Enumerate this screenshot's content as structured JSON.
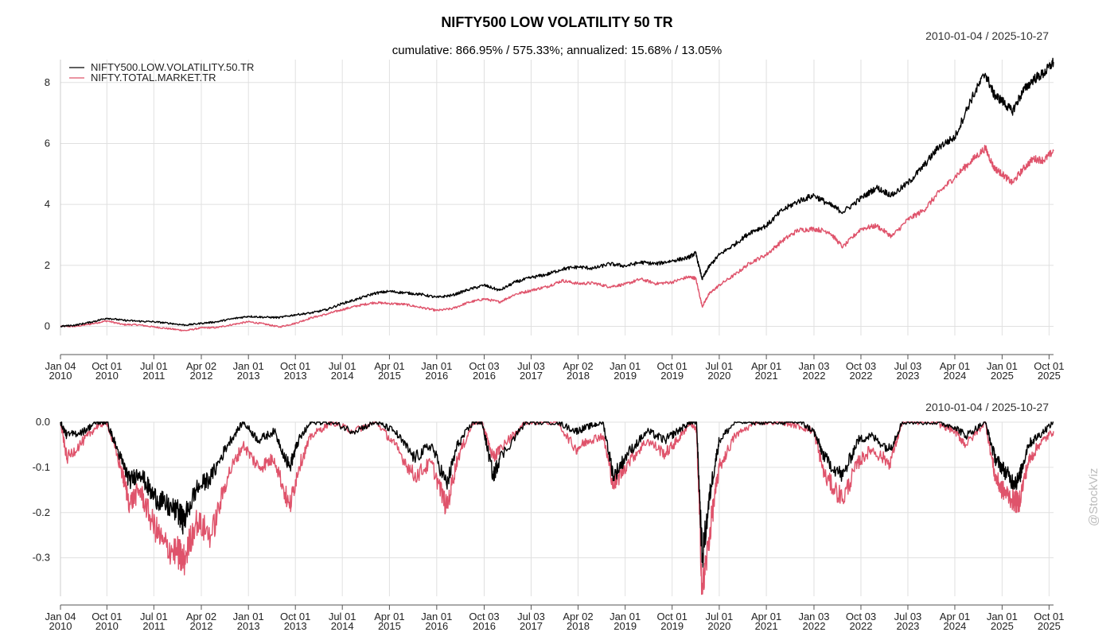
{
  "title": "NIFTY500 LOW VOLATILITY 50 TR",
  "subtitle": "cumulative: 866.95% / 575.33%; annualized: 15.68% / 13.05%",
  "watermark": "@StockViz",
  "colors": {
    "series1": "#000000",
    "series2": "#df536b",
    "grid": "#e0e0e0",
    "axis": "#555555"
  },
  "x_ticks": [
    {
      "d": "2010-01-04",
      "top": "Jan 04",
      "bottom": "2010"
    },
    {
      "d": "2010-10-01",
      "top": "Oct 01",
      "bottom": "2010"
    },
    {
      "d": "2011-07-01",
      "top": "Jul 01",
      "bottom": "2011"
    },
    {
      "d": "2012-04-02",
      "top": "Apr 02",
      "bottom": "2012"
    },
    {
      "d": "2013-01-01",
      "top": "Jan 01",
      "bottom": "2013"
    },
    {
      "d": "2013-10-01",
      "top": "Oct 01",
      "bottom": "2013"
    },
    {
      "d": "2014-07-01",
      "top": "Jul 01",
      "bottom": "2014"
    },
    {
      "d": "2015-04-01",
      "top": "Apr 01",
      "bottom": "2015"
    },
    {
      "d": "2016-01-01",
      "top": "Jan 01",
      "bottom": "2016"
    },
    {
      "d": "2016-10-03",
      "top": "Oct 03",
      "bottom": "2016"
    },
    {
      "d": "2017-07-03",
      "top": "Jul 03",
      "bottom": "2017"
    },
    {
      "d": "2018-04-02",
      "top": "Apr 02",
      "bottom": "2018"
    },
    {
      "d": "2019-01-01",
      "top": "Jan 01",
      "bottom": "2019"
    },
    {
      "d": "2019-10-01",
      "top": "Oct 01",
      "bottom": "2019"
    },
    {
      "d": "2020-07-01",
      "top": "Jul 01",
      "bottom": "2020"
    },
    {
      "d": "2021-04-01",
      "top": "Apr 01",
      "bottom": "2021"
    },
    {
      "d": "2022-01-03",
      "top": "Jan 03",
      "bottom": "2022"
    },
    {
      "d": "2022-10-03",
      "top": "Oct 03",
      "bottom": "2022"
    },
    {
      "d": "2023-07-03",
      "top": "Jul 03",
      "bottom": "2023"
    },
    {
      "d": "2024-04-01",
      "top": "Apr 01",
      "bottom": "2024"
    },
    {
      "d": "2025-01-01",
      "top": "Jan 01",
      "bottom": "2025"
    },
    {
      "d": "2025-10-01",
      "top": "Oct 01",
      "bottom": "2025"
    }
  ],
  "chart_data": [
    {
      "type": "line",
      "panel": "cumulative",
      "date_range": "2010-01-04 / 2025-10-27",
      "xlim": [
        "2010-01-04",
        "2025-10-27"
      ],
      "ylim": [
        -0.3,
        8.75
      ],
      "y_ticks": [
        0,
        2,
        4,
        6,
        8
      ],
      "grid": true,
      "legend_position": "top-left",
      "series": [
        {
          "name": "NIFTY500.LOW.VOLATILITY.50.TR",
          "x": [
            "2010-01-04",
            "2010-04-01",
            "2010-07-01",
            "2010-10-01",
            "2011-01-01",
            "2011-04-01",
            "2011-07-01",
            "2011-10-01",
            "2012-01-01",
            "2012-04-02",
            "2012-07-01",
            "2012-10-01",
            "2013-01-01",
            "2013-04-01",
            "2013-07-01",
            "2013-10-01",
            "2014-01-01",
            "2014-04-01",
            "2014-07-01",
            "2014-10-01",
            "2015-01-01",
            "2015-04-01",
            "2015-07-01",
            "2015-10-01",
            "2016-01-01",
            "2016-04-01",
            "2016-07-01",
            "2016-10-03",
            "2017-01-01",
            "2017-04-01",
            "2017-07-03",
            "2017-10-01",
            "2018-01-01",
            "2018-04-02",
            "2018-07-01",
            "2018-10-01",
            "2019-01-01",
            "2019-04-01",
            "2019-07-01",
            "2019-10-01",
            "2020-01-01",
            "2020-02-15",
            "2020-03-24",
            "2020-05-01",
            "2020-07-01",
            "2020-10-01",
            "2021-01-01",
            "2021-04-01",
            "2021-07-01",
            "2021-10-01",
            "2022-01-03",
            "2022-04-01",
            "2022-06-20",
            "2022-10-03",
            "2023-01-01",
            "2023-04-01",
            "2023-07-03",
            "2023-10-01",
            "2024-01-01",
            "2024-04-01",
            "2024-07-01",
            "2024-09-25",
            "2024-11-15",
            "2025-01-01",
            "2025-03-01",
            "2025-05-01",
            "2025-07-01",
            "2025-09-01",
            "2025-10-27"
          ],
          "y": [
            0.0,
            0.04,
            0.14,
            0.27,
            0.2,
            0.17,
            0.15,
            0.1,
            0.04,
            0.1,
            0.15,
            0.25,
            0.33,
            0.3,
            0.29,
            0.38,
            0.44,
            0.55,
            0.75,
            0.9,
            1.08,
            1.15,
            1.1,
            1.05,
            0.95,
            1.02,
            1.2,
            1.35,
            1.18,
            1.45,
            1.6,
            1.7,
            1.88,
            1.95,
            1.9,
            2.05,
            1.98,
            2.1,
            2.05,
            2.15,
            2.25,
            2.4,
            1.55,
            1.95,
            2.35,
            2.7,
            3.1,
            3.3,
            3.8,
            4.1,
            4.3,
            4.0,
            3.75,
            4.2,
            4.55,
            4.3,
            4.7,
            5.25,
            5.9,
            6.2,
            7.4,
            8.3,
            7.6,
            7.4,
            7.05,
            7.7,
            8.1,
            8.3,
            8.67
          ]
        },
        {
          "name": "NIFTY.TOTAL.MARKET.TR",
          "x": [
            "2010-01-04",
            "2010-04-01",
            "2010-07-01",
            "2010-10-01",
            "2011-01-01",
            "2011-04-01",
            "2011-07-01",
            "2011-10-01",
            "2012-01-01",
            "2012-04-02",
            "2012-07-01",
            "2012-10-01",
            "2013-01-01",
            "2013-04-01",
            "2013-07-01",
            "2013-10-01",
            "2014-01-01",
            "2014-04-01",
            "2014-07-01",
            "2014-10-01",
            "2015-01-01",
            "2015-04-01",
            "2015-07-01",
            "2015-10-01",
            "2016-01-01",
            "2016-04-01",
            "2016-07-01",
            "2016-10-03",
            "2017-01-01",
            "2017-04-01",
            "2017-07-03",
            "2017-10-01",
            "2018-01-01",
            "2018-04-02",
            "2018-07-01",
            "2018-10-01",
            "2019-01-01",
            "2019-04-01",
            "2019-07-01",
            "2019-10-01",
            "2020-01-01",
            "2020-02-15",
            "2020-03-24",
            "2020-05-01",
            "2020-07-01",
            "2020-10-01",
            "2021-01-01",
            "2021-04-01",
            "2021-07-01",
            "2021-10-01",
            "2022-01-03",
            "2022-04-01",
            "2022-06-20",
            "2022-10-03",
            "2023-01-01",
            "2023-04-01",
            "2023-07-03",
            "2023-10-01",
            "2024-01-01",
            "2024-04-01",
            "2024-07-01",
            "2024-09-25",
            "2024-11-15",
            "2025-01-01",
            "2025-03-01",
            "2025-05-01",
            "2025-07-01",
            "2025-09-01",
            "2025-10-27"
          ],
          "y": [
            0.0,
            0.0,
            0.08,
            0.18,
            0.06,
            0.05,
            -0.02,
            -0.08,
            -0.14,
            -0.05,
            -0.04,
            0.06,
            0.15,
            0.08,
            -0.02,
            0.1,
            0.28,
            0.4,
            0.55,
            0.68,
            0.78,
            0.75,
            0.72,
            0.62,
            0.52,
            0.58,
            0.78,
            0.9,
            0.8,
            1.05,
            1.18,
            1.3,
            1.5,
            1.4,
            1.42,
            1.3,
            1.38,
            1.55,
            1.4,
            1.45,
            1.62,
            1.58,
            0.65,
            1.05,
            1.35,
            1.7,
            2.1,
            2.35,
            2.8,
            3.15,
            3.2,
            3.1,
            2.6,
            3.2,
            3.3,
            2.95,
            3.5,
            3.8,
            4.4,
            4.9,
            5.4,
            5.85,
            5.2,
            5.0,
            4.7,
            5.15,
            5.5,
            5.45,
            5.75
          ]
        }
      ]
    },
    {
      "type": "line",
      "panel": "drawdown",
      "date_range": "2010-01-04 / 2025-10-27",
      "xlim": [
        "2010-01-04",
        "2025-10-27"
      ],
      "ylim": [
        -0.385,
        0.0
      ],
      "y_ticks": [
        0.0,
        -0.1,
        -0.2,
        -0.3
      ],
      "grid": true,
      "series": [
        {
          "name": "NIFTY500.LOW.VOLATILITY.50.TR",
          "x": [
            "2010-01-04",
            "2010-02-10",
            "2010-05-20",
            "2010-08-01",
            "2010-10-01",
            "2010-12-20",
            "2011-02-10",
            "2011-04-10",
            "2011-06-20",
            "2011-08-25",
            "2011-11-20",
            "2011-12-20",
            "2012-03-01",
            "2012-06-01",
            "2012-09-01",
            "2012-12-01",
            "2013-03-01",
            "2013-06-01",
            "2013-08-28",
            "2013-10-20",
            "2014-01-01",
            "2014-05-01",
            "2014-09-01",
            "2015-01-15",
            "2015-05-01",
            "2015-08-25",
            "2015-12-01",
            "2016-02-28",
            "2016-05-01",
            "2016-08-01",
            "2016-09-20",
            "2016-11-25",
            "2017-01-01",
            "2017-06-01",
            "2017-12-01",
            "2018-03-20",
            "2018-06-01",
            "2018-08-25",
            "2018-10-25",
            "2019-01-15",
            "2019-05-10",
            "2019-08-20",
            "2019-11-01",
            "2020-01-15",
            "2020-02-20",
            "2020-03-24",
            "2020-05-15",
            "2020-07-01",
            "2020-10-01",
            "2021-02-01",
            "2021-07-01",
            "2021-10-15",
            "2022-01-01",
            "2022-03-07",
            "2022-06-20",
            "2022-09-15",
            "2022-12-01",
            "2023-03-20",
            "2023-06-01",
            "2023-12-01",
            "2024-04-01",
            "2024-06-04",
            "2024-09-25",
            "2024-11-21",
            "2025-01-01",
            "2025-02-28",
            "2025-04-07",
            "2025-06-01",
            "2025-08-01",
            "2025-10-27"
          ],
          "y": [
            0.0,
            -0.03,
            -0.02,
            0.0,
            0.0,
            -0.08,
            -0.13,
            -0.11,
            -0.16,
            -0.18,
            -0.2,
            -0.22,
            -0.15,
            -0.12,
            -0.05,
            0.0,
            -0.04,
            -0.02,
            -0.1,
            -0.04,
            0.0,
            0.0,
            -0.02,
            0.0,
            -0.02,
            -0.08,
            -0.05,
            -0.14,
            -0.05,
            0.0,
            0.0,
            -0.12,
            -0.08,
            0.0,
            0.0,
            -0.02,
            -0.01,
            0.0,
            -0.12,
            -0.07,
            -0.02,
            -0.04,
            -0.02,
            0.0,
            0.0,
            -0.3,
            -0.14,
            -0.04,
            0.0,
            0.0,
            0.0,
            0.0,
            -0.02,
            -0.08,
            -0.12,
            -0.04,
            -0.03,
            -0.06,
            0.0,
            0.0,
            -0.01,
            -0.03,
            0.0,
            -0.08,
            -0.1,
            -0.13,
            -0.13,
            -0.05,
            -0.03,
            0.0
          ]
        },
        {
          "name": "NIFTY.TOTAL.MARKET.TR",
          "x": [
            "2010-01-04",
            "2010-02-10",
            "2010-05-20",
            "2010-08-01",
            "2010-10-01",
            "2010-12-20",
            "2011-02-10",
            "2011-04-10",
            "2011-06-20",
            "2011-08-25",
            "2011-11-20",
            "2011-12-20",
            "2012-03-01",
            "2012-06-01",
            "2012-09-01",
            "2012-12-01",
            "2013-03-01",
            "2013-06-01",
            "2013-08-28",
            "2013-10-20",
            "2014-01-01",
            "2014-05-01",
            "2014-09-01",
            "2015-01-15",
            "2015-05-01",
            "2015-08-25",
            "2015-12-01",
            "2016-02-28",
            "2016-05-01",
            "2016-08-01",
            "2016-09-20",
            "2016-11-25",
            "2017-01-01",
            "2017-06-01",
            "2017-12-01",
            "2018-03-20",
            "2018-06-01",
            "2018-08-25",
            "2018-10-25",
            "2019-01-15",
            "2019-05-10",
            "2019-08-20",
            "2019-11-01",
            "2020-01-15",
            "2020-02-20",
            "2020-03-24",
            "2020-05-15",
            "2020-07-01",
            "2020-10-01",
            "2021-02-01",
            "2021-07-01",
            "2021-10-15",
            "2022-01-01",
            "2022-03-07",
            "2022-06-20",
            "2022-09-15",
            "2022-12-01",
            "2023-03-20",
            "2023-06-01",
            "2023-12-01",
            "2024-04-01",
            "2024-06-04",
            "2024-09-25",
            "2024-11-21",
            "2025-01-01",
            "2025-02-28",
            "2025-04-07",
            "2025-06-01",
            "2025-08-01",
            "2025-10-27"
          ],
          "y": [
            0.0,
            -0.08,
            -0.04,
            -0.01,
            0.0,
            -0.1,
            -0.18,
            -0.15,
            -0.22,
            -0.27,
            -0.29,
            -0.31,
            -0.22,
            -0.25,
            -0.12,
            -0.05,
            -0.1,
            -0.08,
            -0.19,
            -0.1,
            -0.03,
            0.0,
            -0.02,
            0.0,
            -0.05,
            -0.12,
            -0.09,
            -0.19,
            -0.08,
            0.0,
            0.0,
            -0.08,
            -0.06,
            0.0,
            0.0,
            -0.06,
            -0.04,
            -0.03,
            -0.14,
            -0.09,
            -0.04,
            -0.07,
            -0.04,
            0.0,
            -0.02,
            -0.38,
            -0.22,
            -0.1,
            -0.03,
            0.0,
            0.0,
            -0.01,
            -0.02,
            -0.12,
            -0.17,
            -0.09,
            -0.06,
            -0.09,
            0.0,
            0.0,
            -0.02,
            -0.05,
            0.0,
            -0.12,
            -0.15,
            -0.17,
            -0.18,
            -0.09,
            -0.05,
            -0.02
          ]
        }
      ]
    }
  ]
}
